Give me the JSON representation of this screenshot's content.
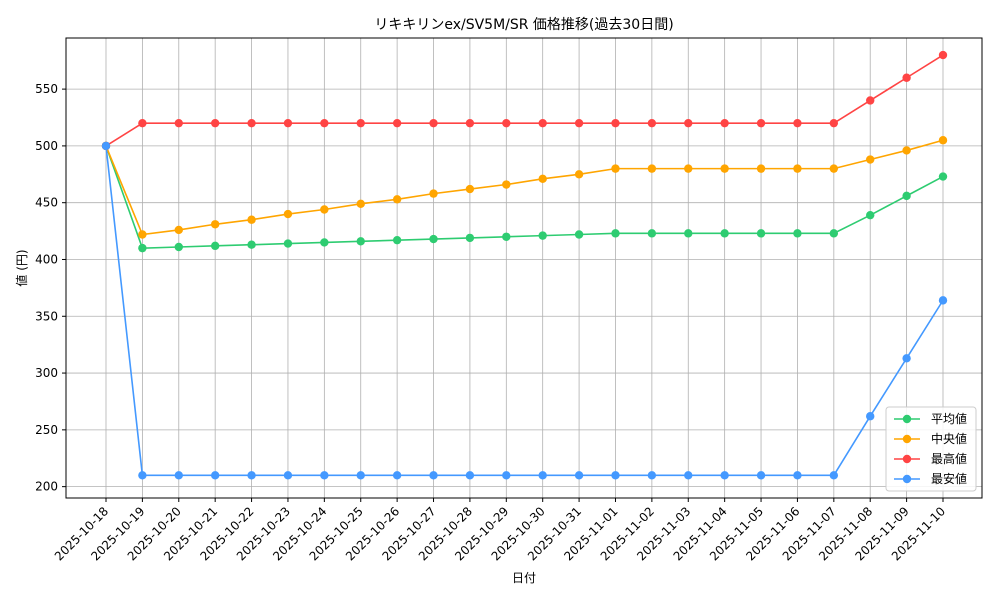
{
  "chart_data": {
    "type": "line",
    "title": "リキキリンex/SV5M/SR 価格推移(過去30日間)",
    "xlabel": "日付",
    "ylabel": "値 (円)",
    "categories": [
      "2025-10-18",
      "2025-10-19",
      "2025-10-20",
      "2025-10-21",
      "2025-10-22",
      "2025-10-23",
      "2025-10-24",
      "2025-10-25",
      "2025-10-26",
      "2025-10-27",
      "2025-10-28",
      "2025-10-29",
      "2025-10-30",
      "2025-10-31",
      "2025-11-01",
      "2025-11-02",
      "2025-11-03",
      "2025-11-04",
      "2025-11-05",
      "2025-11-06",
      "2025-11-07",
      "2025-11-08",
      "2025-11-09",
      "2025-11-10"
    ],
    "yticks": [
      200,
      250,
      300,
      350,
      400,
      450,
      500,
      550
    ],
    "ylim": [
      190,
      595
    ],
    "grid": true,
    "legend_position": "lower-right",
    "series": [
      {
        "name": "平均値",
        "color": "#2ecc71",
        "values": [
          500,
          410,
          411,
          412,
          413,
          414,
          415,
          416,
          417,
          418,
          419,
          420,
          421,
          422,
          423,
          423,
          423,
          423,
          423,
          423,
          423,
          439,
          456,
          473
        ]
      },
      {
        "name": "中央値",
        "color": "#ffa500",
        "values": [
          500,
          422,
          426,
          431,
          435,
          440,
          444,
          449,
          453,
          458,
          462,
          466,
          471,
          475,
          480,
          480,
          480,
          480,
          480,
          480,
          480,
          488,
          496,
          505
        ]
      },
      {
        "name": "最高値",
        "color": "#ff4444",
        "values": [
          500,
          520,
          520,
          520,
          520,
          520,
          520,
          520,
          520,
          520,
          520,
          520,
          520,
          520,
          520,
          520,
          520,
          520,
          520,
          520,
          520,
          540,
          560,
          580
        ]
      },
      {
        "name": "最安値",
        "color": "#4499ff",
        "values": [
          500,
          210,
          210,
          210,
          210,
          210,
          210,
          210,
          210,
          210,
          210,
          210,
          210,
          210,
          210,
          210,
          210,
          210,
          210,
          210,
          210,
          262,
          313,
          364
        ]
      }
    ]
  }
}
